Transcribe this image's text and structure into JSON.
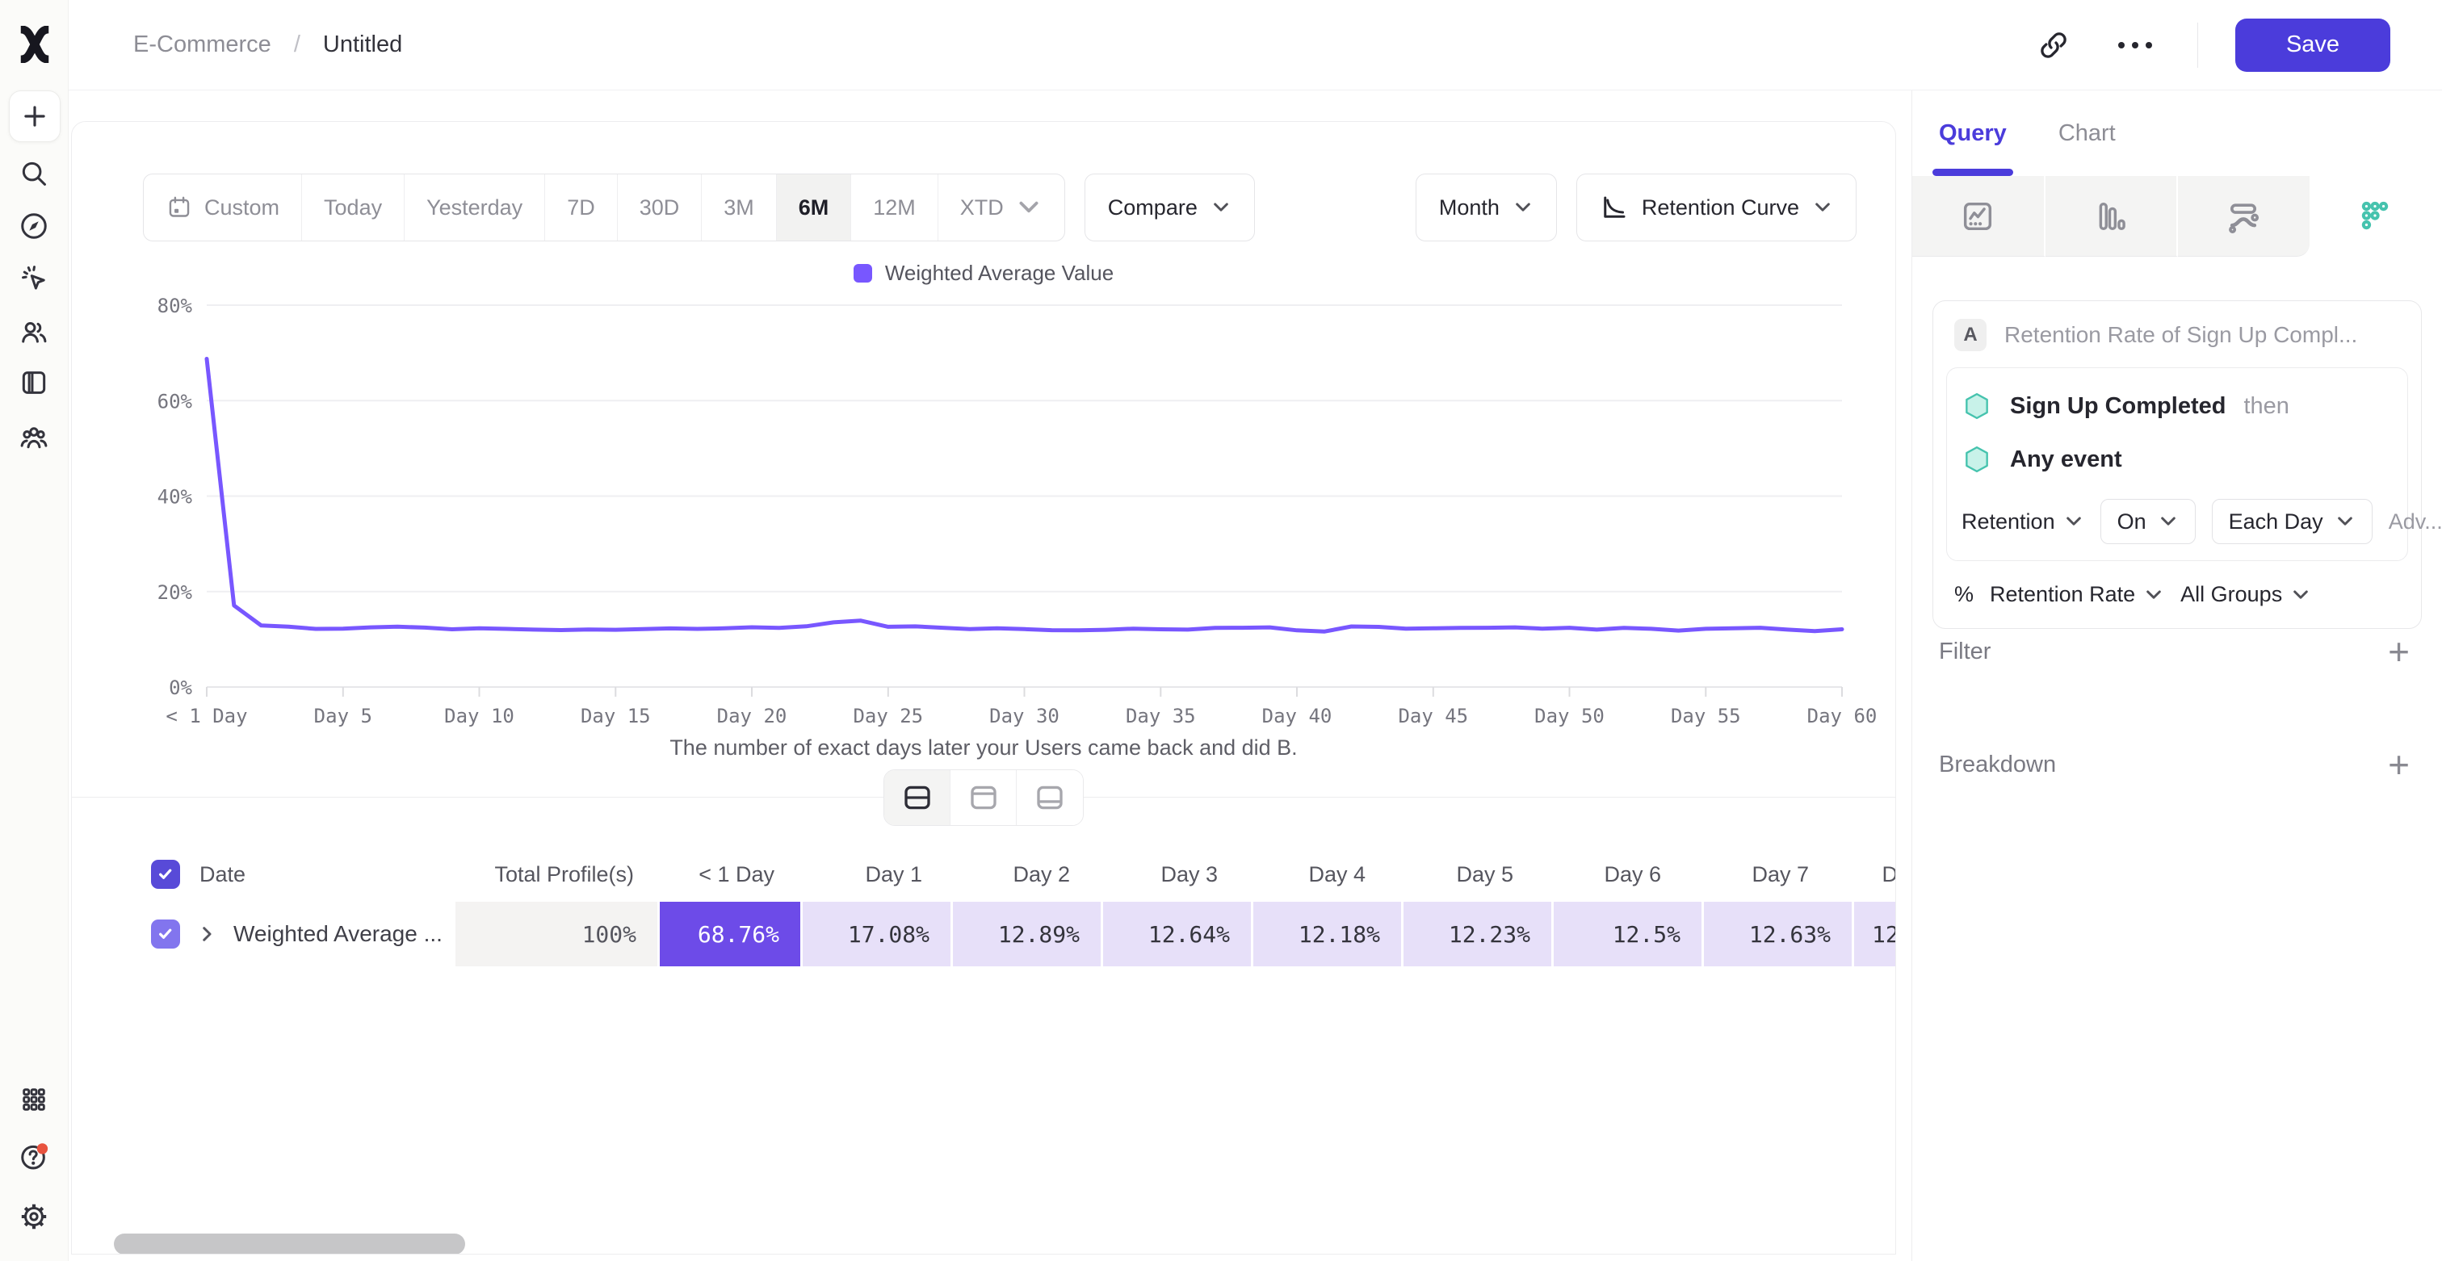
{
  "breadcrumb": {
    "project": "E-Commerce",
    "separator": "/",
    "title": "Untitled"
  },
  "topbar": {
    "save_label": "Save"
  },
  "icons": {
    "rail": [
      "mixpanel-logo",
      "plus",
      "search",
      "compass",
      "cursor-click",
      "users",
      "notebook",
      "cohorts",
      "apps-grid",
      "help",
      "settings"
    ],
    "topbar": [
      "link",
      "ellipsis"
    ],
    "view_toggle": [
      "split-view",
      "chart-only",
      "table-only"
    ],
    "chart_types": [
      "insights-line",
      "funnel-bars",
      "flows",
      "retention-dots"
    ]
  },
  "toolbar": {
    "date_ranges": [
      "Custom",
      "Today",
      "Yesterday",
      "7D",
      "30D",
      "3M",
      "6M",
      "12M",
      "XTD"
    ],
    "selected_range": "6M",
    "compare_label": "Compare",
    "granularity_label": "Month",
    "chart_style_label": "Retention Curve"
  },
  "chart_data": {
    "type": "line",
    "series": [
      {
        "name": "Weighted Average Value",
        "values": [
          68.76,
          17.08,
          12.89,
          12.64,
          12.18,
          12.23,
          12.5,
          12.63,
          12.45,
          12.1,
          12.32,
          12.18,
          12.02,
          11.92,
          12.05,
          12.0,
          12.12,
          12.28,
          12.18,
          12.3,
          12.52,
          12.38,
          12.72,
          13.55,
          13.9,
          12.62,
          12.7,
          12.42,
          12.12,
          12.3,
          12.12,
          11.9,
          11.88,
          12.0,
          12.22,
          12.1,
          12.02,
          12.38,
          12.42,
          12.5,
          11.88,
          11.62,
          12.68,
          12.6,
          12.22,
          12.3,
          12.4,
          12.42,
          12.5,
          12.22,
          12.42,
          12.02,
          12.4,
          12.2,
          11.82,
          12.2,
          12.32,
          12.42,
          12.02,
          11.72,
          12.1
        ]
      }
    ],
    "x_unit": "days",
    "x_range": [
      0,
      60
    ],
    "x_tick_labels": [
      "< 1 Day",
      "Day 5",
      "Day 10",
      "Day 15",
      "Day 20",
      "Day 25",
      "Day 30",
      "Day 35",
      "Day 40",
      "Day 45",
      "Day 50",
      "Day 55",
      "Day 60"
    ],
    "y_ticks": [
      "0%",
      "20%",
      "40%",
      "60%",
      "80%"
    ],
    "y_tick_values": [
      0,
      20,
      40,
      60,
      80
    ],
    "ylim": [
      0,
      80
    ],
    "xlabel": "The number of exact days later your Users came back and did B.",
    "legend_position": "top",
    "grid": true
  },
  "table": {
    "headers": [
      "Date",
      "Total Profile(s)",
      "< 1 Day",
      "Day 1",
      "Day 2",
      "Day 3",
      "Day 4",
      "Day 5",
      "Day 6",
      "Day 7",
      "D"
    ],
    "rows": [
      {
        "label": "Weighted Average ...",
        "checked": true,
        "values": [
          "100%",
          "68.76%",
          "17.08%",
          "12.89%",
          "12.64%",
          "12.18%",
          "12.23%",
          "12.5%",
          "12.63%",
          "12."
        ]
      }
    ]
  },
  "query_panel": {
    "tabs": [
      "Query",
      "Chart"
    ],
    "active_tab": "Query",
    "selected_chart_type": "retention-dots",
    "query": {
      "label_badge": "A",
      "title": "Retention Rate of Sign Up Compl...",
      "first_event": "Sign Up Completed",
      "then_label": "then",
      "second_event": "Any event",
      "retention_label": "Retention",
      "on_label": "On",
      "bucket_label": "Each Day",
      "advanced_label": "Adv...",
      "percent_symbol": "%",
      "measure_label": "Retention Rate",
      "groups_label": "All Groups"
    },
    "filter": {
      "label": "Filter",
      "add_label": "+"
    },
    "breakdown": {
      "label": "Breakdown",
      "add_label": "+"
    }
  },
  "colors": {
    "accent": "#4B3CDB",
    "chart_line": "#7857FF",
    "cell_strong": "#6D4BE8",
    "cell_light": "#E7E0F9",
    "cell_neutral": "#F4F3F2",
    "teal": "#46C3AE",
    "teal_fill": "#C8F2E9",
    "alert_dot": "#E8533F"
  }
}
